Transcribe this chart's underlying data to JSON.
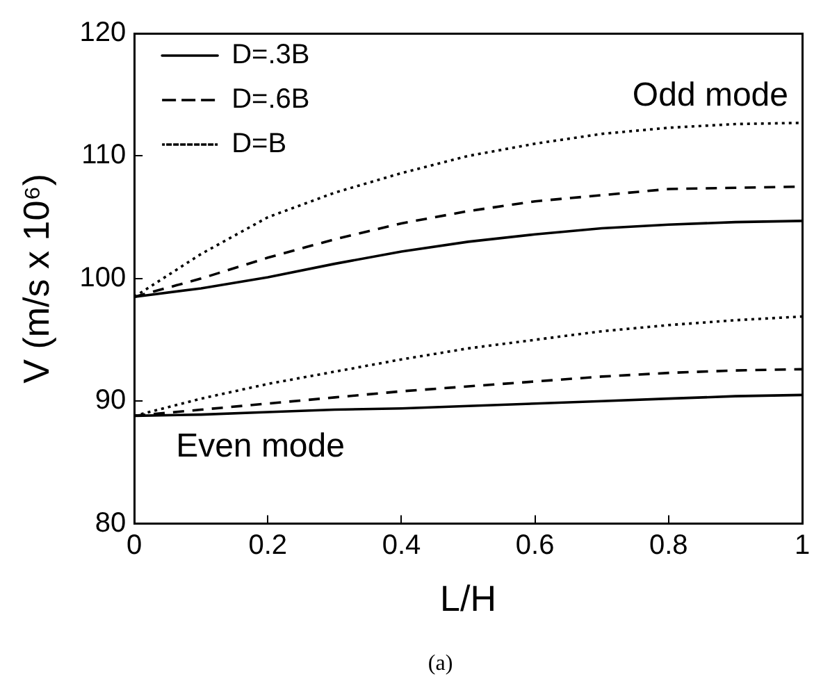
{
  "chart_data": {
    "type": "line",
    "xlabel": "L/H",
    "ylabel": "V (m/s x 10⁶)",
    "x": [
      0,
      0.1,
      0.2,
      0.3,
      0.4,
      0.5,
      0.6,
      0.7,
      0.8,
      0.9,
      1
    ],
    "series": [
      {
        "name": "D=.3B",
        "color": "#000000",
        "line_style": "solid",
        "values": [
          98.5,
          99.2,
          100.1,
          101.2,
          102.2,
          103,
          103.6,
          104.1,
          104.4,
          104.6,
          104.7
        ]
      },
      {
        "name": "D=.6B",
        "color": "#000000",
        "line_style": "dashed",
        "values": [
          98.5,
          100,
          101.7,
          103.2,
          104.5,
          105.5,
          106.3,
          106.8,
          107.3,
          107.4,
          107.5
        ]
      },
      {
        "name": "D=B",
        "color": "#000000",
        "line_style": "dotted",
        "values": [
          98.5,
          102,
          105,
          107,
          108.6,
          110,
          111,
          111.8,
          112.3,
          112.6,
          112.7
        ]
      },
      {
        "color": "#000000",
        "line_style": "solid",
        "values": [
          88.8,
          88.9,
          89.1,
          89.3,
          89.4,
          89.6,
          89.8,
          90,
          90.2,
          90.4,
          90.5
        ]
      },
      {
        "color": "#000000",
        "line_style": "dashed",
        "values": [
          88.8,
          89.3,
          89.8,
          90.3,
          90.8,
          91.2,
          91.6,
          92,
          92.3,
          92.5,
          92.6
        ]
      },
      {
        "color": "#000000",
        "line_style": "dotted",
        "values": [
          88.8,
          90.2,
          91.4,
          92.4,
          93.4,
          94.3,
          95,
          95.7,
          96.2,
          96.6,
          96.9
        ]
      }
    ],
    "xlim": [
      0,
      1
    ],
    "xticks": [
      0,
      0.2,
      0.4,
      0.6,
      0.8,
      1
    ],
    "ylim": [
      80,
      120
    ],
    "yticks": [
      80,
      90,
      100,
      110,
      120
    ],
    "annotations": [
      "Odd mode",
      "Even mode",
      "(a)"
    ],
    "legend": "top left",
    "marker": "none",
    "grid": false
  }
}
